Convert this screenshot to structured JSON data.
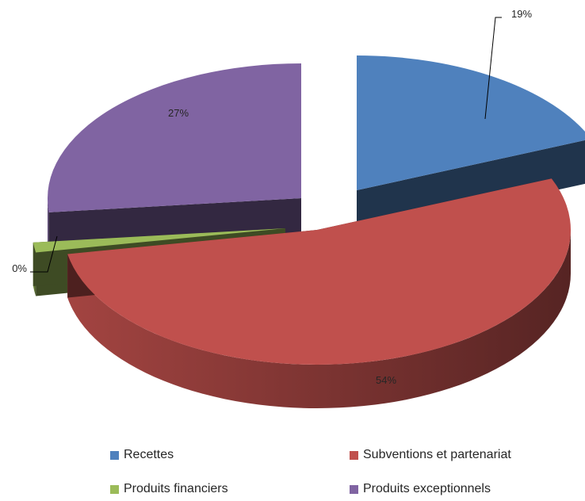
{
  "chart_data": {
    "type": "pie",
    "style": "3d exploded",
    "categories": [
      "Recettes",
      "Subventions et partenariat",
      "Produits financiers",
      "Produits exceptionnels"
    ],
    "values": [
      19,
      54,
      0,
      27
    ],
    "data_labels": [
      "19%",
      "54%",
      "0%",
      "27%"
    ],
    "colors": [
      "#4f81bd",
      "#c0504d",
      "#9bbb59",
      "#8064a2"
    ],
    "legend_position": "bottom"
  },
  "legend": [
    {
      "label": "Recettes",
      "color": "#4f81bd"
    },
    {
      "label": "Subventions et partenariat",
      "color": "#c0504d"
    },
    {
      "label": "Produits financiers",
      "color": "#9bbb59"
    },
    {
      "label": "Produits exceptionnels",
      "color": "#8064a2"
    }
  ]
}
